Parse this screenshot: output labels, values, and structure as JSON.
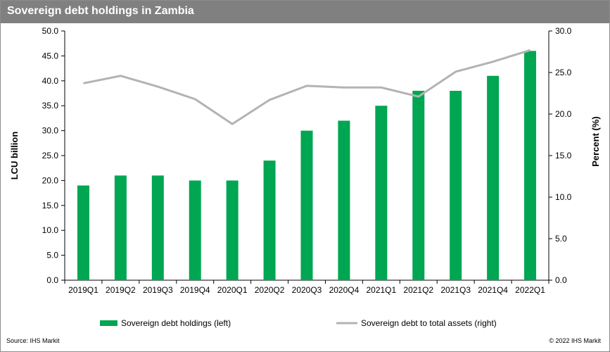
{
  "title": "Sovereign debt holdings in Zambia",
  "footer": {
    "source": "Source:  IHS Markit",
    "copyright": "© 2022  IHS Markit"
  },
  "colors": {
    "bars": "#00a651",
    "line": "#b3b3b3",
    "title_bg": "#808080"
  },
  "chart_data": {
    "type": "bar",
    "title": "Sovereign debt holdings in Zambia",
    "categories": [
      "2019Q1",
      "2019Q2",
      "2019Q3",
      "2019Q4",
      "2020Q1",
      "2020Q2",
      "2020Q3",
      "2020Q4",
      "2021Q1",
      "2021Q2",
      "2021Q3",
      "2021Q4",
      "2022Q1"
    ],
    "series": [
      {
        "name": "Sovereign debt holdings (left)",
        "type": "bar",
        "axis": "left",
        "values": [
          19,
          21,
          21,
          20,
          20,
          24,
          30,
          32,
          35,
          38,
          38,
          41,
          46
        ]
      },
      {
        "name": "Sovereign debt to total assets (right)",
        "type": "line",
        "axis": "right",
        "values": [
          23.7,
          24.6,
          23.3,
          21.8,
          18.8,
          21.7,
          23.4,
          23.2,
          23.2,
          22.1,
          25.1,
          26.3,
          27.7
        ]
      }
    ],
    "ylabel_left": "LCU billion",
    "ylabel_right": "Percent (%)",
    "ylim_left": [
      0,
      50
    ],
    "ylim_right": [
      0,
      30
    ],
    "yticks_left": [
      "0.0",
      "5.0",
      "10.0",
      "15.0",
      "20.0",
      "25.0",
      "30.0",
      "35.0",
      "40.0",
      "45.0",
      "50.0"
    ],
    "yticks_right": [
      "0.0",
      "5.0",
      "10.0",
      "15.0",
      "20.0",
      "25.0",
      "30.0"
    ],
    "grid": false,
    "legend_position": "bottom"
  }
}
